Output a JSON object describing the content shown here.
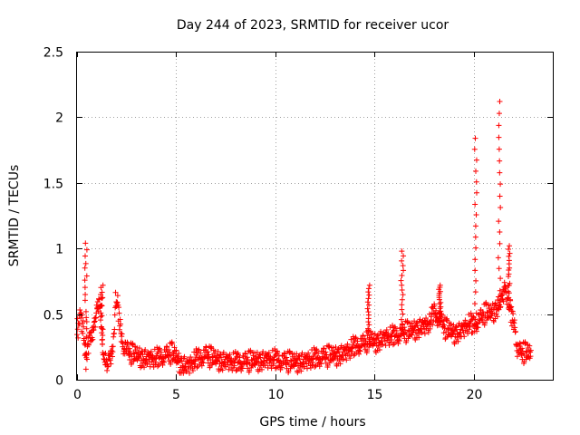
{
  "chart_data": {
    "type": "scatter",
    "title": "Day 244 of 2023, SRMTID for receiver ucor",
    "xlabel": "GPS time / hours",
    "ylabel": "SRMTID / TECUs",
    "xlim": [
      0,
      24
    ],
    "ylim": [
      0,
      2.5
    ],
    "x_ticks": [
      0,
      5,
      10,
      15,
      20
    ],
    "x_tick_labels": [
      "0",
      "5",
      "10",
      "15",
      "20"
    ],
    "y_ticks": [
      0,
      0.5,
      1,
      1.5,
      2,
      2.5
    ],
    "y_tick_labels": [
      "0",
      "0.5",
      "1",
      "1.5",
      "2",
      "2.5"
    ],
    "grid": true,
    "marker": "+",
    "marker_color": "#ff0000",
    "profile": {
      "x": [
        0.0,
        0.15,
        0.3,
        0.45,
        0.5,
        0.6,
        0.8,
        1.0,
        1.15,
        1.3,
        1.45,
        1.6,
        1.8,
        1.95,
        2.05,
        2.2,
        2.35,
        2.6,
        3.0,
        3.5,
        4.0,
        4.5,
        4.8,
        5.2,
        5.6,
        6.0,
        6.5,
        7.0,
        7.5,
        8.0,
        8.5,
        9.0,
        9.5,
        10.0,
        10.5,
        11.0,
        11.5,
        12.0,
        12.5,
        13.0,
        13.5,
        14.0,
        14.5,
        14.8,
        15.0,
        15.3,
        15.6,
        16.0,
        16.3,
        16.5,
        16.8,
        17.0,
        17.4,
        17.8,
        18.0,
        18.3,
        18.6,
        19.0,
        19.4,
        19.8,
        20.0,
        20.3,
        20.6,
        20.9,
        21.2,
        21.45,
        21.6,
        21.8,
        21.95,
        22.1,
        22.2,
        22.4,
        22.7,
        22.9
      ],
      "y": [
        0.35,
        0.5,
        0.4,
        0.15,
        0.2,
        0.3,
        0.35,
        0.5,
        0.6,
        0.15,
        0.12,
        0.15,
        0.2,
        0.6,
        0.55,
        0.35,
        0.25,
        0.2,
        0.18,
        0.16,
        0.15,
        0.18,
        0.2,
        0.12,
        0.1,
        0.14,
        0.18,
        0.15,
        0.14,
        0.12,
        0.13,
        0.14,
        0.15,
        0.14,
        0.13,
        0.13,
        0.14,
        0.15,
        0.17,
        0.18,
        0.2,
        0.24,
        0.27,
        0.3,
        0.28,
        0.3,
        0.32,
        0.32,
        0.34,
        0.36,
        0.36,
        0.38,
        0.4,
        0.42,
        0.5,
        0.45,
        0.38,
        0.35,
        0.37,
        0.42,
        0.4,
        0.45,
        0.5,
        0.5,
        0.55,
        0.62,
        0.7,
        0.55,
        0.45,
        0.4,
        0.22,
        0.2,
        0.2,
        0.19
      ]
    },
    "spikes": [
      {
        "center": 0.45,
        "peak": 1.04
      },
      {
        "center": 1.25,
        "peak": 0.72
      },
      {
        "center": 14.7,
        "peak": 0.72
      },
      {
        "center": 16.4,
        "peak": 0.98
      },
      {
        "center": 18.3,
        "peak": 0.72
      },
      {
        "center": 20.1,
        "peak": 1.84
      },
      {
        "center": 21.3,
        "peak": 2.12
      },
      {
        "center": 21.8,
        "peak": 1.02
      }
    ]
  }
}
